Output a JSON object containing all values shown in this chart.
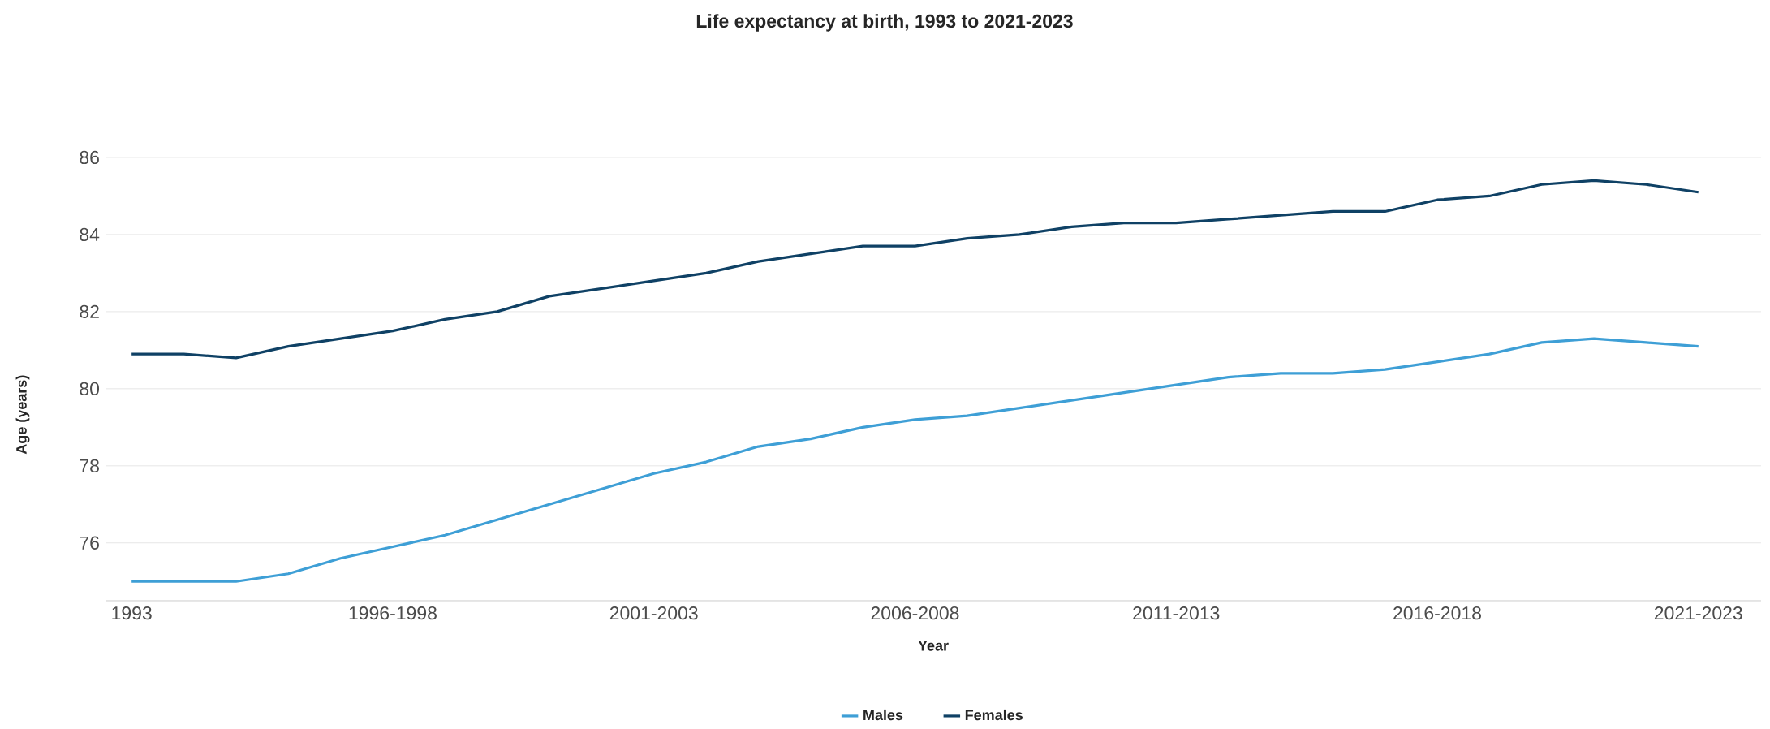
{
  "chart_data": {
    "type": "line",
    "title": "Life expectancy at birth, 1993 to 2021-2023",
    "xlabel": "Year",
    "ylabel": "Age (years)",
    "categories": [
      "1993",
      null,
      null,
      null,
      null,
      "1996-1998",
      null,
      null,
      null,
      null,
      "2001-2003",
      null,
      null,
      null,
      null,
      "2006-2008",
      null,
      null,
      null,
      null,
      "2011-2013",
      null,
      null,
      null,
      null,
      "2016-2018",
      null,
      null,
      null,
      null,
      "2021-2023"
    ],
    "series": [
      {
        "name": "Males",
        "color": "#3e9fd6",
        "values": [
          75.0,
          75.0,
          75.0,
          75.2,
          75.6,
          75.9,
          76.2,
          76.6,
          77.0,
          77.4,
          77.8,
          78.1,
          78.5,
          78.7,
          79.0,
          79.2,
          79.3,
          79.5,
          79.7,
          79.9,
          80.1,
          80.3,
          80.4,
          80.4,
          80.5,
          80.7,
          80.9,
          81.2,
          81.3,
          81.2,
          81.1
        ]
      },
      {
        "name": "Females",
        "color": "#0f4165",
        "values": [
          80.9,
          80.9,
          80.8,
          81.1,
          81.3,
          81.5,
          81.8,
          82.0,
          82.4,
          82.6,
          82.8,
          83.0,
          83.3,
          83.5,
          83.7,
          83.7,
          83.9,
          84.0,
          84.2,
          84.3,
          84.3,
          84.4,
          84.5,
          84.6,
          84.6,
          84.9,
          85.0,
          85.3,
          85.4,
          85.3,
          85.1
        ]
      }
    ],
    "ylim": [
      74.5,
      86
    ],
    "yticks": [
      76,
      78,
      80,
      82,
      84,
      86
    ],
    "grid": "y",
    "legend": "bottom",
    "marker": "none",
    "line_style": "solid"
  }
}
